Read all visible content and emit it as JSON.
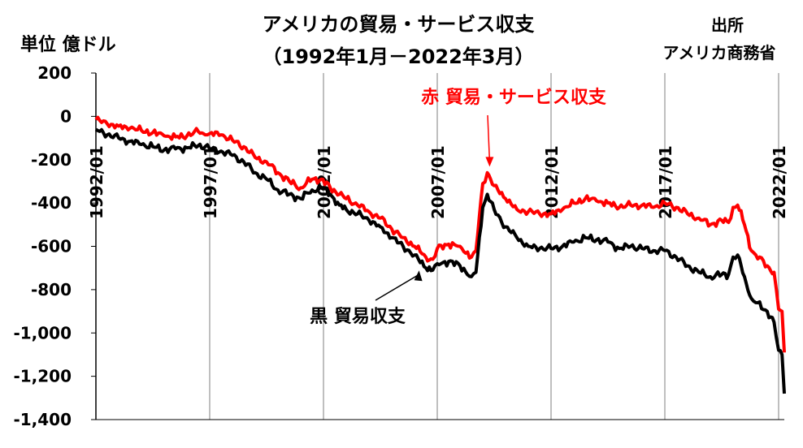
{
  "chart_data": {
    "type": "line",
    "title": "アメリカの貿易・サービス収支",
    "subtitle": "（1992年1月－2022年3月）",
    "ylabel": "単位 億ドル",
    "source_label": "出所",
    "source": "アメリカ商務省",
    "ylim": [
      -1400,
      200
    ],
    "yticks": [
      200,
      0,
      -200,
      -400,
      -600,
      -800,
      -1000,
      -1200,
      -1400
    ],
    "ytick_labels": [
      "200",
      "0",
      "-200",
      "-400",
      "-600",
      "-800",
      "-1,000",
      "-1,200",
      "-1,400"
    ],
    "xlim": [
      1992.0,
      2022.25
    ],
    "xticks": [
      1992,
      1997,
      2002,
      2007,
      2012,
      2017,
      2022
    ],
    "xtick_labels": [
      "1992/01",
      "1997/01",
      "2002/01",
      "2007/01",
      "2012/01",
      "2017/01",
      "2022/01"
    ],
    "grid": "vertical",
    "series": [
      {
        "name": "赤 貿易・サービス収支",
        "color": "#ff0000",
        "points": [
          [
            1992.0,
            -15
          ],
          [
            1992.5,
            -35
          ],
          [
            1993.0,
            -45
          ],
          [
            1993.5,
            -55
          ],
          [
            1994.0,
            -65
          ],
          [
            1994.5,
            -75
          ],
          [
            1995.0,
            -90
          ],
          [
            1995.5,
            -95
          ],
          [
            1996.0,
            -90
          ],
          [
            1996.5,
            -70
          ],
          [
            1996.8,
            -85
          ],
          [
            1997.0,
            -80
          ],
          [
            1997.5,
            -85
          ],
          [
            1998.0,
            -110
          ],
          [
            1998.5,
            -140
          ],
          [
            1999.0,
            -190
          ],
          [
            1999.5,
            -210
          ],
          [
            2000.0,
            -260
          ],
          [
            2000.5,
            -300
          ],
          [
            2001.0,
            -330
          ],
          [
            2001.5,
            -290
          ],
          [
            2001.9,
            -290
          ],
          [
            2002.3,
            -330
          ],
          [
            2002.7,
            -360
          ],
          [
            2003.0,
            -380
          ],
          [
            2003.5,
            -410
          ],
          [
            2004.0,
            -440
          ],
          [
            2004.5,
            -470
          ],
          [
            2005.0,
            -520
          ],
          [
            2005.5,
            -560
          ],
          [
            2006.0,
            -600
          ],
          [
            2006.5,
            -650
          ],
          [
            2006.8,
            -660
          ],
          [
            2007.0,
            -610
          ],
          [
            2007.5,
            -590
          ],
          [
            2008.0,
            -600
          ],
          [
            2008.5,
            -650
          ],
          [
            2008.7,
            -620
          ],
          [
            2009.0,
            -310
          ],
          [
            2009.2,
            -260
          ],
          [
            2009.5,
            -320
          ],
          [
            2010.0,
            -380
          ],
          [
            2010.5,
            -430
          ],
          [
            2011.0,
            -440
          ],
          [
            2011.5,
            -450
          ],
          [
            2012.0,
            -450
          ],
          [
            2012.5,
            -430
          ],
          [
            2013.0,
            -400
          ],
          [
            2013.5,
            -380
          ],
          [
            2014.0,
            -390
          ],
          [
            2014.5,
            -400
          ],
          [
            2015.0,
            -420
          ],
          [
            2015.5,
            -410
          ],
          [
            2016.0,
            -410
          ],
          [
            2016.5,
            -420
          ],
          [
            2017.0,
            -400
          ],
          [
            2017.5,
            -420
          ],
          [
            2018.0,
            -450
          ],
          [
            2018.5,
            -470
          ],
          [
            2019.0,
            -500
          ],
          [
            2019.5,
            -480
          ],
          [
            2019.8,
            -490
          ],
          [
            2020.0,
            -420
          ],
          [
            2020.2,
            -410
          ],
          [
            2020.5,
            -500
          ],
          [
            2020.8,
            -620
          ],
          [
            2021.0,
            -640
          ],
          [
            2021.5,
            -690
          ],
          [
            2021.8,
            -720
          ],
          [
            2022.0,
            -890
          ],
          [
            2022.15,
            -900
          ],
          [
            2022.25,
            -1090
          ]
        ]
      },
      {
        "name": "黒 貿易収支",
        "color": "#000000",
        "points": [
          [
            1992.0,
            -60
          ],
          [
            1992.5,
            -85
          ],
          [
            1993.0,
            -100
          ],
          [
            1993.5,
            -115
          ],
          [
            1994.0,
            -130
          ],
          [
            1994.5,
            -140
          ],
          [
            1995.0,
            -155
          ],
          [
            1995.5,
            -150
          ],
          [
            1996.0,
            -145
          ],
          [
            1996.5,
            -135
          ],
          [
            1996.8,
            -140
          ],
          [
            1997.0,
            -150
          ],
          [
            1997.5,
            -160
          ],
          [
            1998.0,
            -180
          ],
          [
            1998.5,
            -210
          ],
          [
            1999.0,
            -260
          ],
          [
            1999.5,
            -290
          ],
          [
            2000.0,
            -340
          ],
          [
            2000.5,
            -360
          ],
          [
            2001.0,
            -380
          ],
          [
            2001.5,
            -340
          ],
          [
            2001.9,
            -330
          ],
          [
            2002.3,
            -360
          ],
          [
            2002.7,
            -410
          ],
          [
            2003.0,
            -430
          ],
          [
            2003.5,
            -450
          ],
          [
            2004.0,
            -480
          ],
          [
            2004.5,
            -510
          ],
          [
            2005.0,
            -560
          ],
          [
            2005.5,
            -600
          ],
          [
            2006.0,
            -640
          ],
          [
            2006.5,
            -700
          ],
          [
            2006.8,
            -710
          ],
          [
            2007.0,
            -680
          ],
          [
            2007.5,
            -670
          ],
          [
            2008.0,
            -690
          ],
          [
            2008.5,
            -740
          ],
          [
            2008.7,
            -720
          ],
          [
            2009.0,
            -420
          ],
          [
            2009.2,
            -360
          ],
          [
            2009.5,
            -430
          ],
          [
            2010.0,
            -510
          ],
          [
            2010.5,
            -560
          ],
          [
            2011.0,
            -600
          ],
          [
            2011.5,
            -610
          ],
          [
            2012.0,
            -610
          ],
          [
            2012.5,
            -600
          ],
          [
            2013.0,
            -580
          ],
          [
            2013.5,
            -560
          ],
          [
            2014.0,
            -570
          ],
          [
            2014.5,
            -580
          ],
          [
            2015.0,
            -610
          ],
          [
            2015.5,
            -600
          ],
          [
            2016.0,
            -610
          ],
          [
            2016.5,
            -620
          ],
          [
            2017.0,
            -620
          ],
          [
            2017.5,
            -650
          ],
          [
            2018.0,
            -690
          ],
          [
            2018.5,
            -720
          ],
          [
            2019.0,
            -740
          ],
          [
            2019.5,
            -730
          ],
          [
            2019.8,
            -730
          ],
          [
            2020.0,
            -650
          ],
          [
            2020.2,
            -640
          ],
          [
            2020.5,
            -740
          ],
          [
            2020.8,
            -840
          ],
          [
            2021.0,
            -860
          ],
          [
            2021.5,
            -900
          ],
          [
            2021.8,
            -950
          ],
          [
            2022.0,
            -1080
          ],
          [
            2022.15,
            -1100
          ],
          [
            2022.25,
            -1280
          ]
        ]
      }
    ],
    "annotations": [
      {
        "series": 0,
        "text": "赤 貿易・サービス収支",
        "target_x": 2009.3,
        "target_y": -240
      },
      {
        "series": 1,
        "text": "黒 貿易収支",
        "target_x": 2006.2,
        "target_y": -700
      }
    ]
  }
}
